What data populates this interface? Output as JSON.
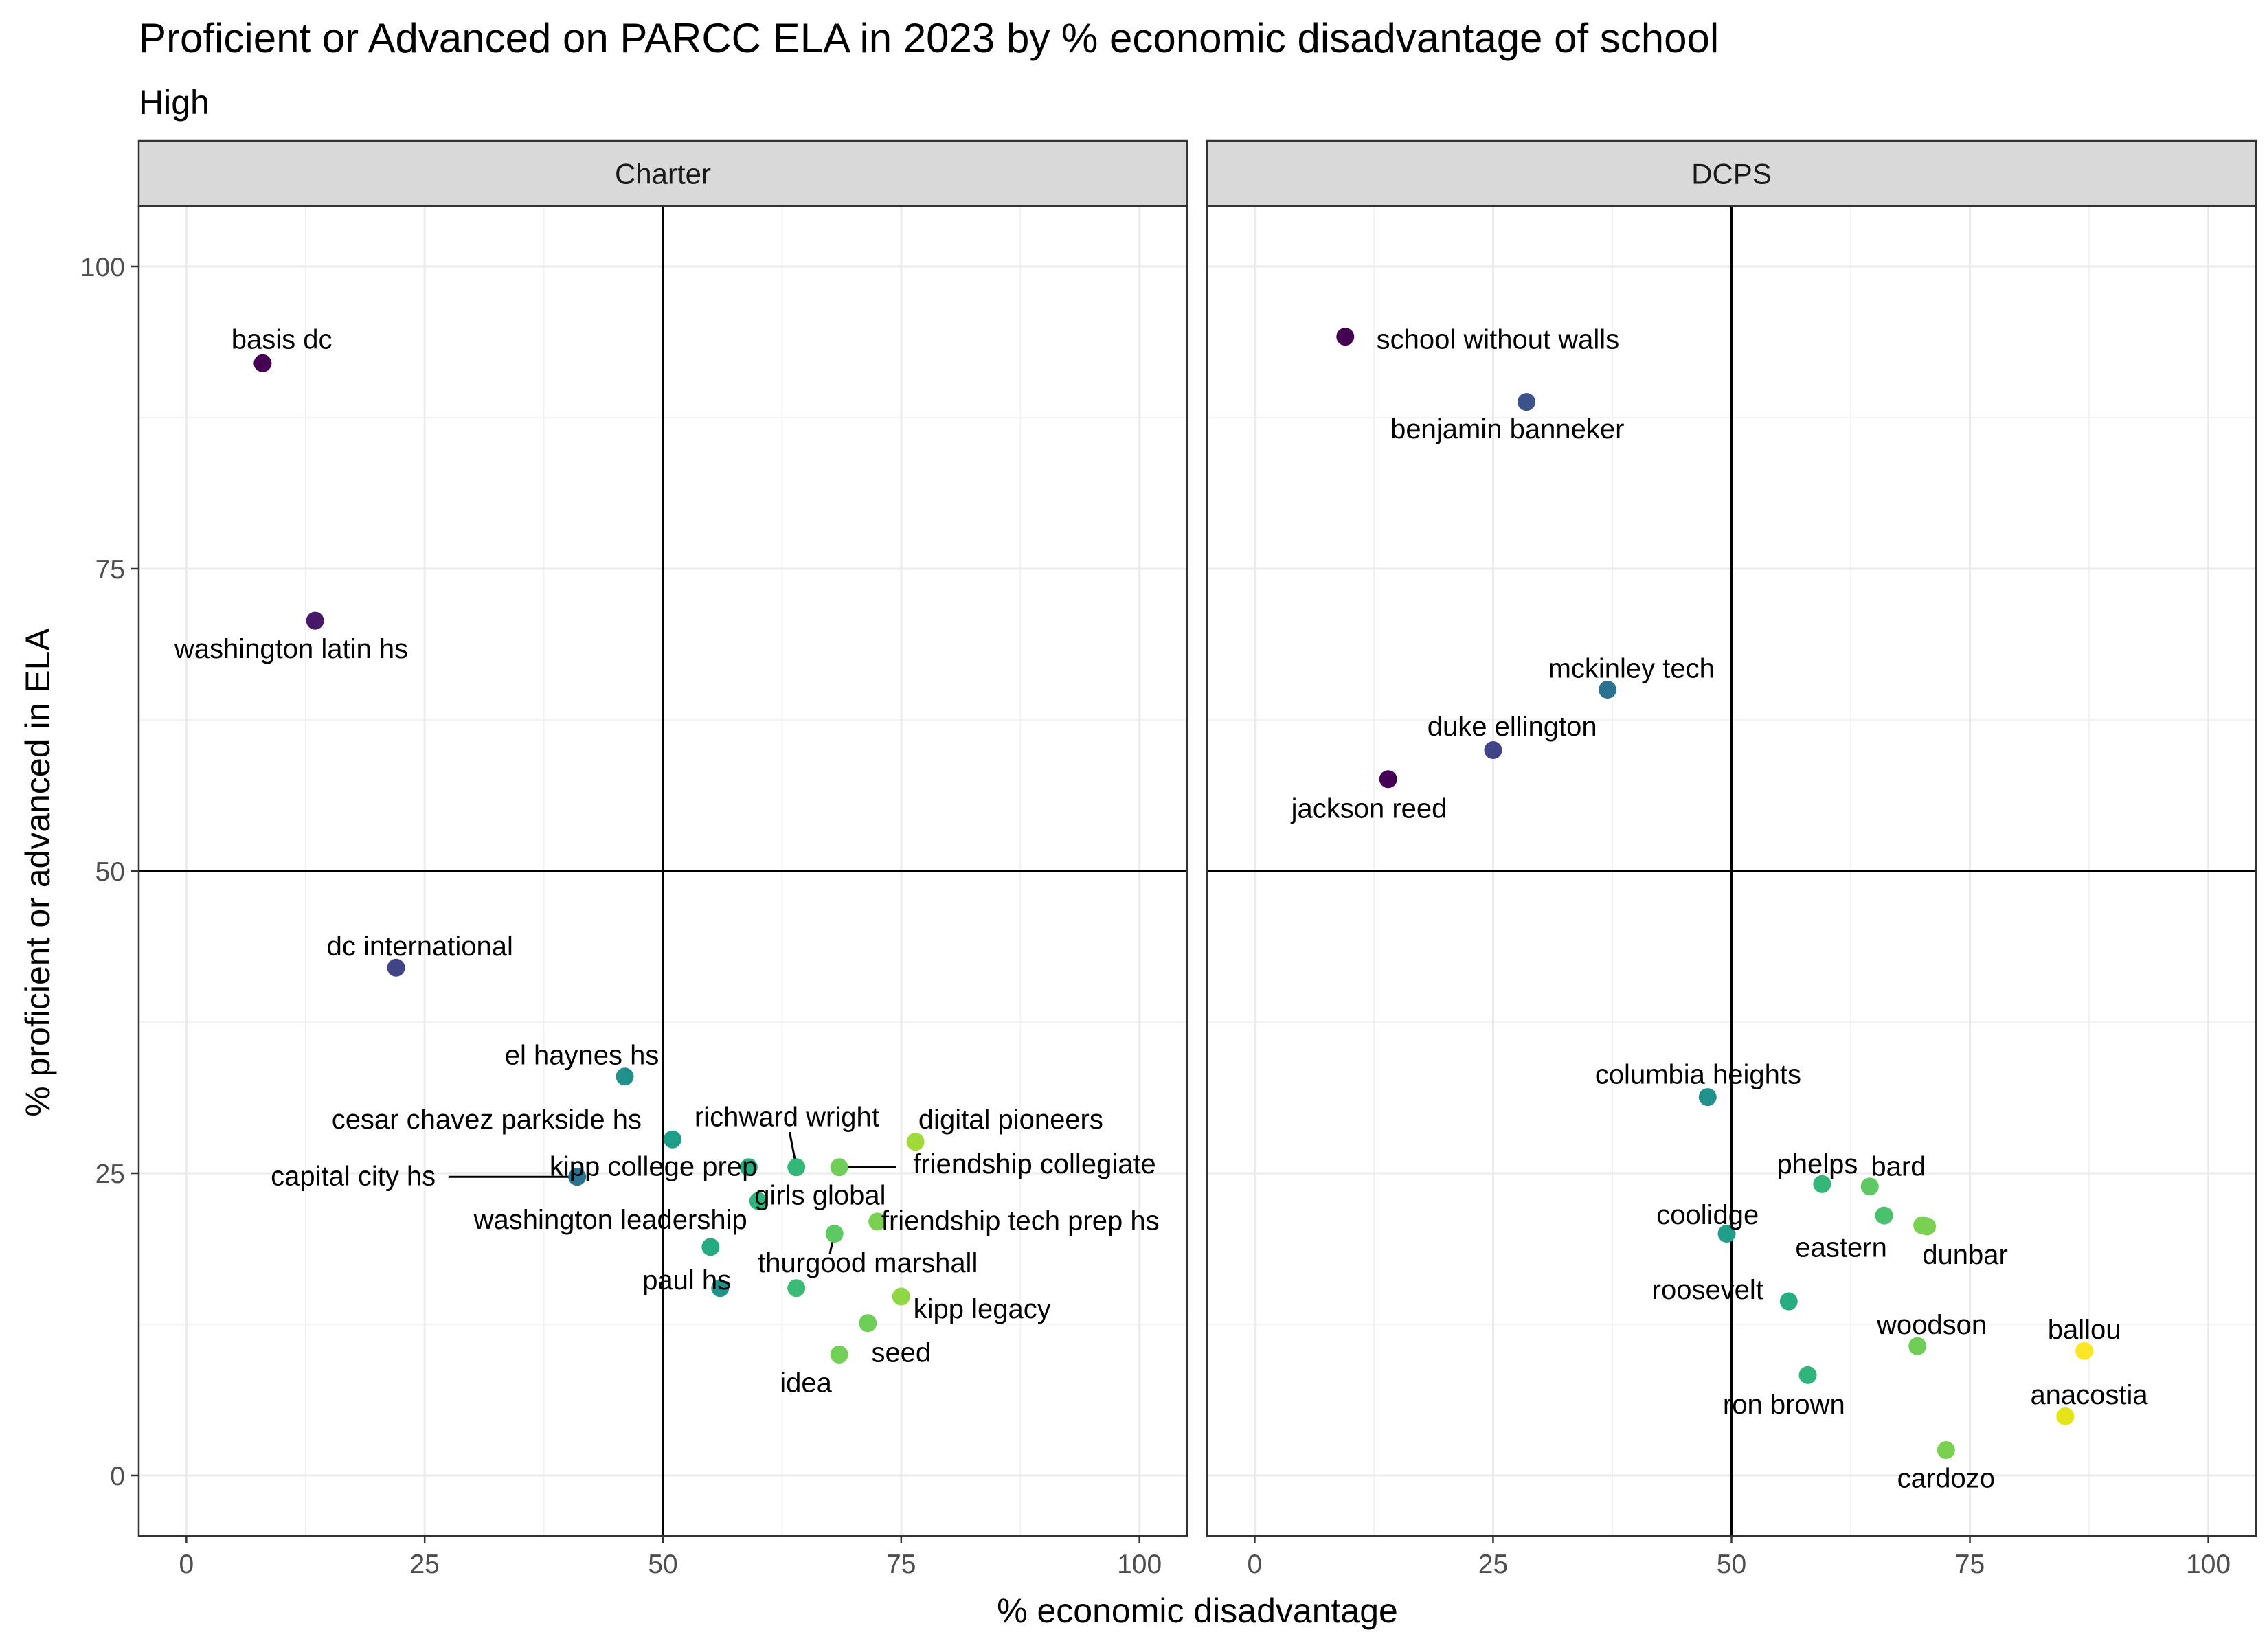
{
  "chart_data": {
    "type": "scatter",
    "title": "Proficient or Advanced on PARCC ELA in 2023 by % economic disadvantage of school",
    "subtitle": "High",
    "xlabel": "% economic disadvantage",
    "ylabel": "% proficient or advanced in ELA",
    "xlim": [
      -5,
      105
    ],
    "ylim": [
      -5,
      105
    ],
    "x_ticks": [
      0,
      25,
      50,
      75,
      100
    ],
    "y_ticks": [
      0,
      25,
      50,
      75,
      100
    ],
    "reference_lines": {
      "x": 50,
      "y": 50
    },
    "grid": true,
    "color_scale": "viridis",
    "panels": [
      {
        "name": "Charter",
        "points": [
          {
            "label": "basis dc",
            "x": 8,
            "y": 92,
            "color": "#440154",
            "lx": 10,
            "ly": 94
          },
          {
            "label": "washington latin hs",
            "x": 13.5,
            "y": 70.7,
            "color": "#48186a",
            "lx": 11,
            "ly": 68.4
          },
          {
            "label": "dc international",
            "x": 22,
            "y": 42,
            "color": "#414487",
            "lx": 24.5,
            "ly": 43.8
          },
          {
            "label": "el haynes hs",
            "x": 46,
            "y": 33,
            "color": "#21918c",
            "lx": 41.5,
            "ly": 34.8
          },
          {
            "label": "cesar chavez parkside hs",
            "x": 51,
            "y": 27.8,
            "color": "#1f9e89",
            "lx": 31.5,
            "ly": 29.5
          },
          {
            "label": "capital city hs",
            "x": 41,
            "y": 24.7,
            "color": "#2c728e",
            "lx": 17.5,
            "ly": 24.8,
            "sx": 27.5
          },
          {
            "label": "kipp college prep",
            "x": 59,
            "y": 25.5,
            "color": "#27ad81",
            "lx": 49,
            "ly": 25.6
          },
          {
            "label": "richward wright",
            "x": 64,
            "y": 25.5,
            "color": "#35b779",
            "lx": 63,
            "ly": 29.7,
            "sx": 63.3,
            "sy": 28.4
          },
          {
            "label": "digital pioneers",
            "x": 76.5,
            "y": 27.6,
            "color": "#a0da39",
            "lx": 86.5,
            "ly": 29.5
          },
          {
            "label": "friendship collegiate",
            "x": 68.5,
            "y": 25.5,
            "color": "#6ece58",
            "lx": 89,
            "ly": 25.8,
            "sx": 74.5
          },
          {
            "label": "girls global",
            "x": 60,
            "y": 22.7,
            "color": "#2fb47c",
            "lx": 66.5,
            "ly": 23.2
          },
          {
            "label": "washington leadership",
            "x": 55,
            "y": 18.9,
            "color": "#25ab82",
            "lx": 44.5,
            "ly": 21.2
          },
          {
            "label": "friendship tech prep hs",
            "x": 72.5,
            "y": 21,
            "color": "#7ad151",
            "lx": 87.5,
            "ly": 21.1
          },
          {
            "label": "thurgood marshall",
            "x": 68,
            "y": 20,
            "color": "#5ec962",
            "lx": 71.5,
            "ly": 17.6,
            "sx": 67.5,
            "sy": 18.3
          },
          {
            "label": "paul hs",
            "x": 56,
            "y": 15.5,
            "color": "#21918c",
            "lx": 52.5,
            "ly": 16.2
          },
          {
            "label": "kipp legacy",
            "x": 75,
            "y": 14.8,
            "color": "#8fd744",
            "lx": 83.5,
            "ly": 13.8
          },
          {
            "label": "",
            "x": 71.5,
            "y": 12.6,
            "color": "#6ece58"
          },
          {
            "label": "seed",
            "x": 68.5,
            "y": 10,
            "color": "#73d056",
            "lx": 75,
            "ly": 10.2
          },
          {
            "label": "idea",
            "x": 64,
            "y": 15.5,
            "color": "#3bbb75",
            "lx": 65,
            "ly": 7.7
          }
        ]
      },
      {
        "name": "DCPS",
        "points": [
          {
            "label": "school without walls",
            "x": 9.5,
            "y": 94.2,
            "color": "#440154",
            "lx": 25.5,
            "ly": 94
          },
          {
            "label": "benjamin banneker",
            "x": 28.5,
            "y": 88.8,
            "color": "#3b528b",
            "lx": 26.5,
            "ly": 86.6
          },
          {
            "label": "mckinley tech",
            "x": 37,
            "y": 65,
            "color": "#2c728e",
            "lx": 39.5,
            "ly": 66.8
          },
          {
            "label": "duke ellington",
            "x": 25,
            "y": 60,
            "color": "#414487",
            "lx": 27,
            "ly": 62
          },
          {
            "label": "jackson reed",
            "x": 14,
            "y": 57.6,
            "color": "#440154",
            "lx": 12,
            "ly": 55.2
          },
          {
            "label": "columbia heights",
            "x": 47.5,
            "y": 31.3,
            "color": "#21918c",
            "lx": 46.5,
            "ly": 33.2
          },
          {
            "label": "phelps",
            "x": 59.5,
            "y": 24.1,
            "color": "#35b779",
            "lx": 59,
            "ly": 25.8
          },
          {
            "label": "bard",
            "x": 64.5,
            "y": 23.9,
            "color": "#5ec962",
            "lx": 67.5,
            "ly": 25.6
          },
          {
            "label": "coolidge",
            "x": 49.5,
            "y": 20,
            "color": "#1f9e89",
            "lx": 47.5,
            "ly": 21.6
          },
          {
            "label": "",
            "x": 66,
            "y": 21.5,
            "color": "#4ac16d"
          },
          {
            "label": "eastern",
            "x": 70,
            "y": 20.7,
            "color": "#7ad151",
            "lx": 61.5,
            "ly": 18.9
          },
          {
            "label": "dunbar",
            "x": 70.5,
            "y": 20.6,
            "color": "#7ad151",
            "lx": 74.5,
            "ly": 18.3
          },
          {
            "label": "roosevelt",
            "x": 56,
            "y": 14.4,
            "color": "#27ad81",
            "lx": 47.5,
            "ly": 15.4
          },
          {
            "label": "woodson",
            "x": 69.5,
            "y": 10.7,
            "color": "#6ece58",
            "lx": 71,
            "ly": 12.5
          },
          {
            "label": "ballou",
            "x": 87,
            "y": 10.3,
            "color": "#fde725",
            "lx": 87,
            "ly": 12.1
          },
          {
            "label": "ron brown",
            "x": 58,
            "y": 8.3,
            "color": "#2fb47c",
            "lx": 55.5,
            "ly": 5.9
          },
          {
            "label": "anacostia",
            "x": 85,
            "y": 4.9,
            "color": "#e4e419",
            "lx": 87.5,
            "ly": 6.7
          },
          {
            "label": "cardozo",
            "x": 72.5,
            "y": 2.1,
            "color": "#7ad151",
            "lx": 72.5,
            "ly": -0.2
          }
        ]
      }
    ]
  }
}
